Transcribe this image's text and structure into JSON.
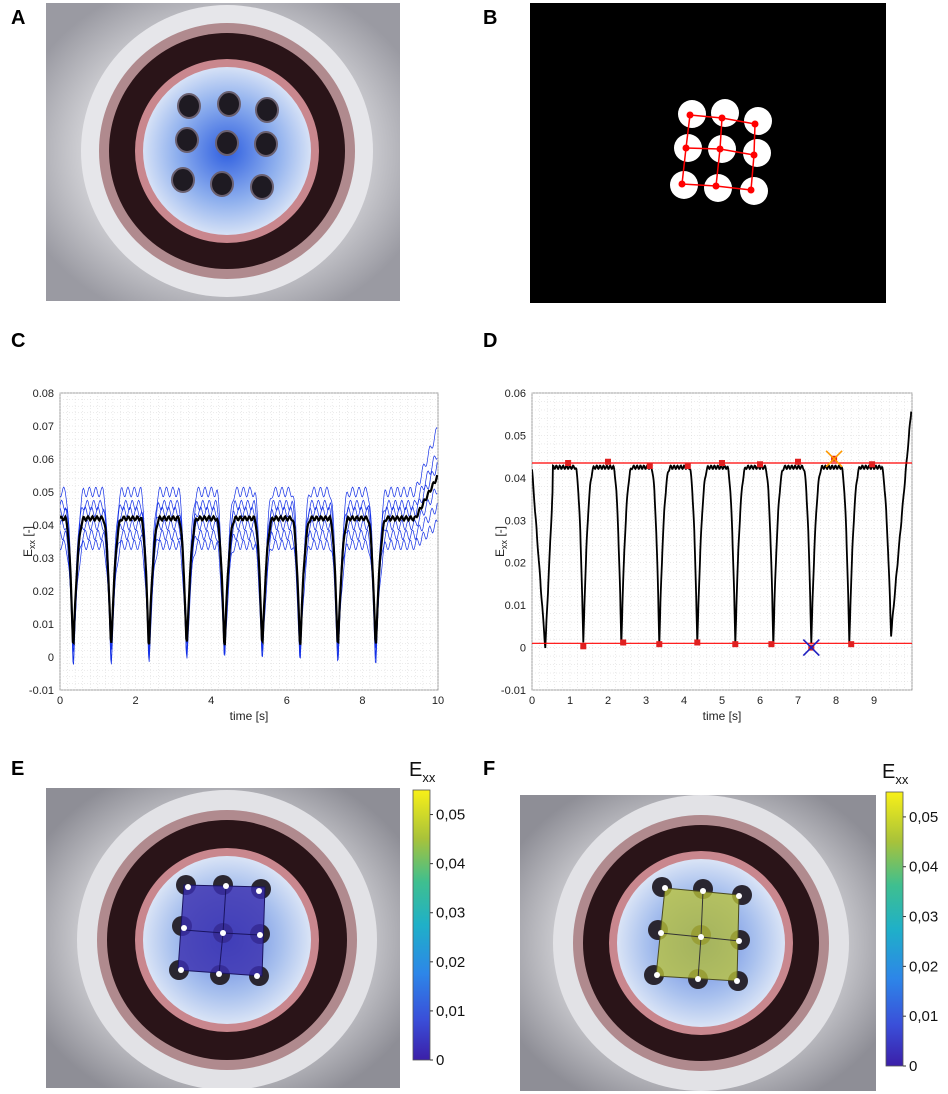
{
  "panels": {
    "A": "A",
    "B": "B",
    "C": "C",
    "D": "D",
    "E": "E",
    "F": "F"
  },
  "colors": {
    "series_blue": "#1430e6",
    "mean_black": "#000000",
    "threshold_red": "#ff0000",
    "marker_red": "#e02020",
    "max_cross": "#ff9900",
    "min_cross": "#2020c0"
  },
  "chart_data": [
    {
      "panel": "C",
      "type": "line",
      "title": "",
      "xlabel": "time [s]",
      "ylabel_main": "E",
      "ylabel_sub": "xx",
      "ylabel_unit": " [-]",
      "xlim": [
        0,
        10
      ],
      "ylim": [
        -0.01,
        0.08
      ],
      "xticks": [
        0,
        2,
        4,
        6,
        8,
        10
      ],
      "yticks": [
        -0.01,
        0,
        0.01,
        0.02,
        0.03,
        0.04,
        0.05,
        0.06,
        0.07,
        0.08
      ],
      "ytick_labels": [
        "-0.01",
        "0",
        "0.01",
        "0.02",
        "0.03",
        "0.04",
        "0.05",
        "0.06",
        "0.07",
        "0.08"
      ],
      "grid": true,
      "cycles": {
        "count": 9,
        "period_s": 1.0,
        "first_min_s": 0.35,
        "plateau": 0.042,
        "minimum": 0.001,
        "start": 0.042,
        "end": 0.055
      },
      "series": [
        {
          "name": "",
          "color": "#1430e6",
          "role": "individual markers (spread envelope approx. ±0.01)"
        },
        {
          "name": "",
          "color": "#000000",
          "role": "mean"
        }
      ]
    },
    {
      "panel": "D",
      "type": "line",
      "title": "",
      "xlabel": "time [s]",
      "ylabel_main": "E",
      "ylabel_sub": "xx",
      "ylabel_unit": " [-]",
      "xlim": [
        0,
        10
      ],
      "ylim": [
        -0.01,
        0.06
      ],
      "xticks": [
        0,
        1,
        2,
        3,
        4,
        5,
        6,
        7,
        8,
        9
      ],
      "yticks": [
        -0.01,
        0,
        0.01,
        0.02,
        0.03,
        0.04,
        0.05,
        0.06
      ],
      "ytick_labels": [
        "-0.01",
        "0",
        "0.01",
        "0.02",
        "0.03",
        "0.04",
        "0.05",
        "0.06"
      ],
      "grid": true,
      "threshold_lines": [
        0.0435,
        0.001
      ],
      "peaks": {
        "x": [
          0.95,
          2.0,
          3.1,
          4.1,
          5.0,
          6.0,
          7.0,
          7.95,
          8.95
        ],
        "y": [
          0.0435,
          0.0438,
          0.0428,
          0.0428,
          0.0435,
          0.0432,
          0.0438,
          0.0445,
          0.0432
        ]
      },
      "valleys": {
        "x": [
          1.35,
          2.4,
          3.35,
          4.35,
          5.35,
          6.3,
          7.35,
          8.4
        ],
        "y": [
          0.0003,
          0.0012,
          0.0008,
          0.0012,
          0.0008,
          0.0008,
          0.0,
          0.0008
        ]
      },
      "max_marker": {
        "x": 7.95,
        "y": 0.0445
      },
      "min_marker": {
        "x": 7.35,
        "y": 0.0
      }
    }
  ],
  "colorbars": [
    {
      "panel": "E",
      "title_main": "E",
      "title_sub": "xx",
      "ticks": [
        "0",
        "0,01",
        "0,02",
        "0,03",
        "0,04",
        "0,05"
      ],
      "range": [
        0,
        0.055
      ]
    },
    {
      "panel": "F",
      "title_main": "E",
      "title_sub": "xx",
      "ticks": [
        "0",
        "0,01",
        "0,02",
        "0,03",
        "0,04",
        "0,05"
      ],
      "range": [
        0,
        0.055
      ]
    }
  ],
  "overlays": {
    "E": {
      "strain_value": 0.0,
      "fill": "#3b2fb0"
    },
    "F": {
      "strain_value": 0.044,
      "fill": "#b9c23a"
    }
  }
}
